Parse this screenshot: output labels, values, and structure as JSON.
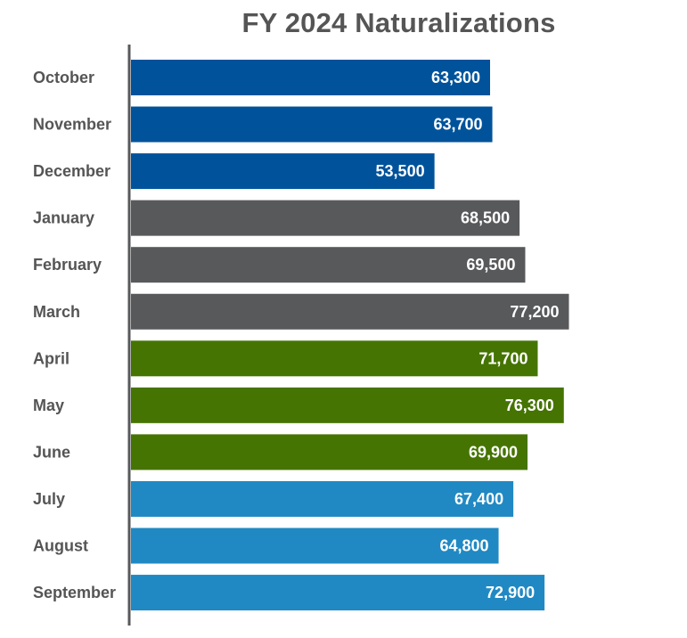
{
  "chart_data": {
    "type": "bar",
    "orientation": "horizontal",
    "title": "FY 2024 Naturalizations",
    "xlabel": "",
    "ylabel": "",
    "xlim": [
      0,
      80000
    ],
    "grid": false,
    "legend": "none",
    "categories": [
      "October",
      "November",
      "December",
      "January",
      "February",
      "March",
      "April",
      "May",
      "June",
      "July",
      "August",
      "September"
    ],
    "values": [
      63300,
      63700,
      53500,
      68500,
      69500,
      77200,
      71700,
      76300,
      69900,
      67400,
      64800,
      72900
    ],
    "data_labels": [
      "63,300",
      "63,700",
      "53,500",
      "68,500",
      "69,500",
      "77,200",
      "71,700",
      "76,300",
      "69,900",
      "67,400",
      "64,800",
      "72,900"
    ],
    "bar_colors": [
      "#00539b",
      "#00539b",
      "#00539b",
      "#58595b",
      "#58595b",
      "#58595b",
      "#457402",
      "#457402",
      "#457402",
      "#2089c3",
      "#2089c3",
      "#2089c3"
    ],
    "axis_color": "#58595b",
    "label_color": "#555555"
  }
}
